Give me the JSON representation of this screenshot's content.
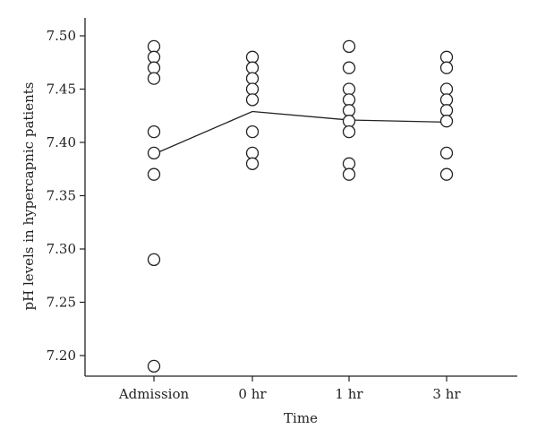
{
  "chart_data": {
    "type": "scatter",
    "xlabel": "Time",
    "ylabel": "pH levels in hypercapnic patients",
    "categories": [
      "Admission",
      "0 hr",
      "1 hr",
      "3 hr"
    ],
    "ylim": [
      7.18,
      7.52
    ],
    "yticks": [
      "7.20",
      "7.25",
      "7.30",
      "7.35",
      "7.40",
      "7.45",
      "7.50"
    ],
    "grid": false,
    "points": [
      [
        7.49,
        7.48,
        7.47,
        7.46,
        7.41,
        7.39,
        7.37,
        7.29,
        7.19
      ],
      [
        7.48,
        7.47,
        7.46,
        7.45,
        7.44,
        7.41,
        7.39,
        7.38
      ],
      [
        7.49,
        7.47,
        7.45,
        7.44,
        7.43,
        7.42,
        7.41,
        7.38,
        7.37
      ],
      [
        7.48,
        7.47,
        7.45,
        7.44,
        7.43,
        7.42,
        7.39,
        7.37
      ]
    ],
    "mean_line": [
      7.389,
      7.429,
      7.421,
      7.419
    ],
    "colors": {
      "marker_stroke": "#222222",
      "line": "#222222",
      "axis": "#222222"
    }
  }
}
